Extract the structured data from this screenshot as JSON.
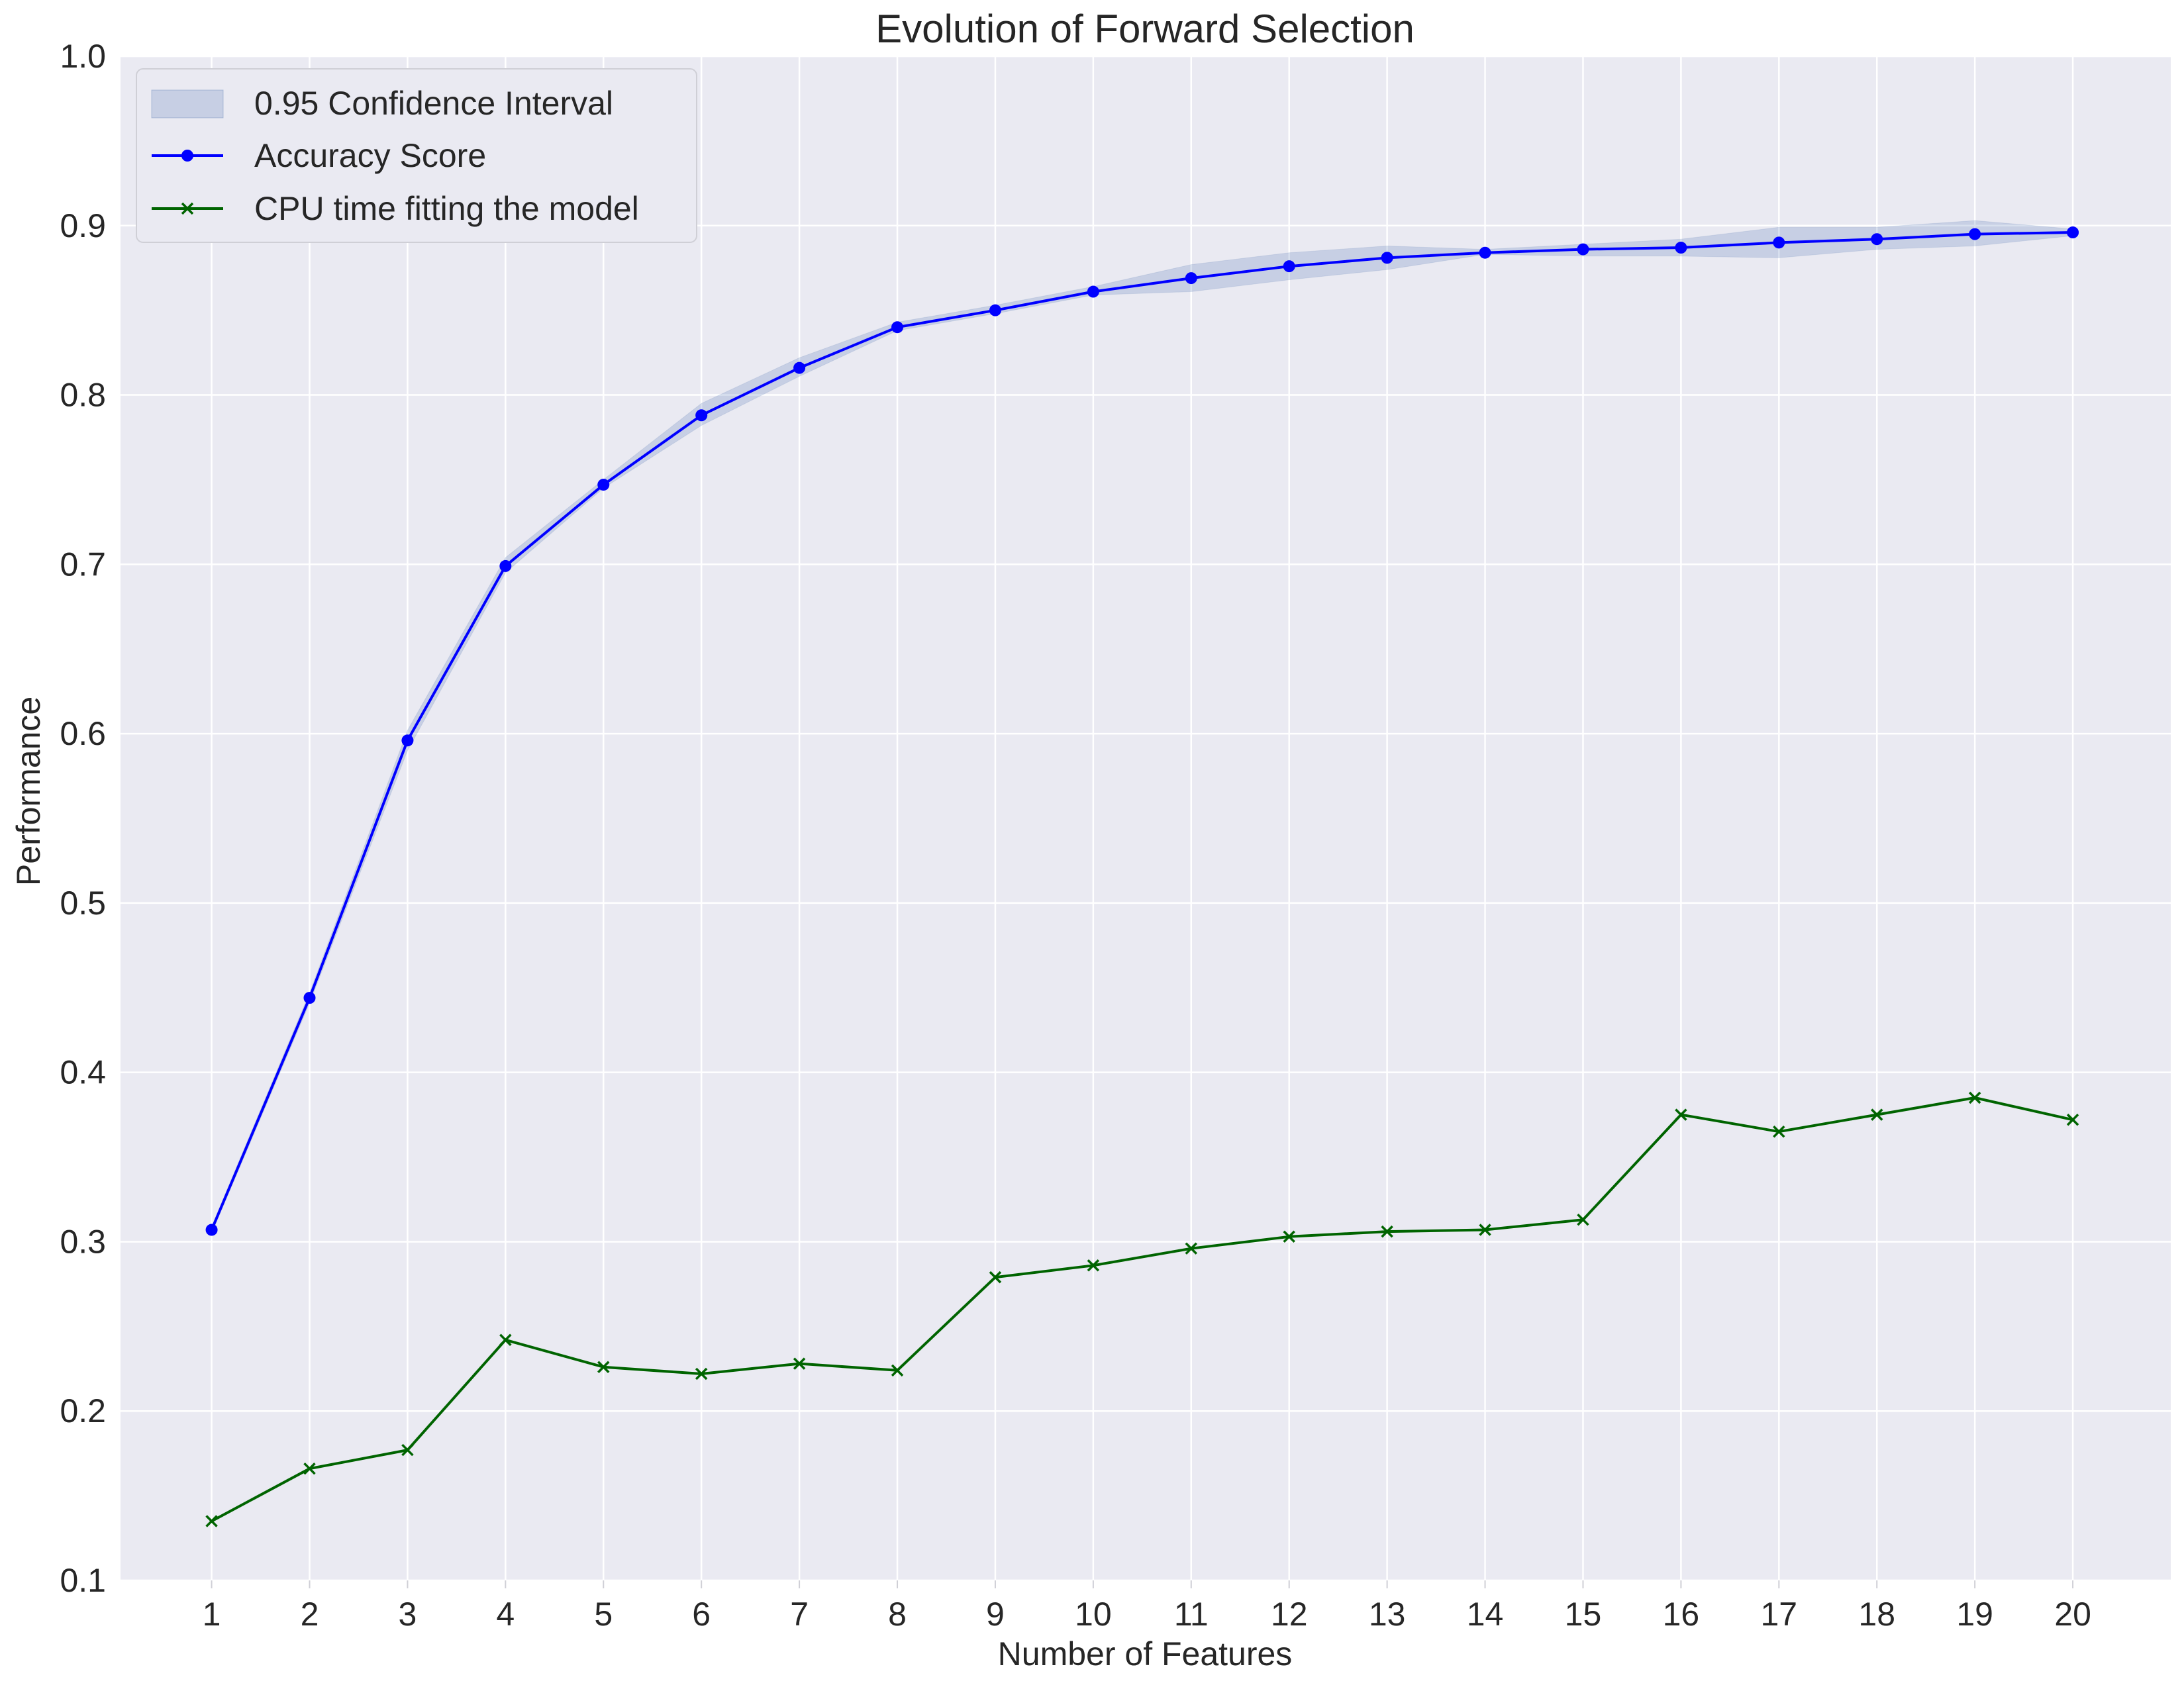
{
  "chart_data": {
    "type": "line",
    "title": "Evolution of Forward Selection",
    "xlabel": "Number of Features",
    "ylabel": "Performance",
    "x": [
      1,
      2,
      3,
      4,
      5,
      6,
      7,
      8,
      9,
      10,
      11,
      12,
      13,
      14,
      15,
      16,
      17,
      18,
      19,
      20
    ],
    "xlim": [
      0.07,
      21.0
    ],
    "ylim": [
      0.1,
      1.0
    ],
    "yticks": [
      "0.1",
      "0.2",
      "0.3",
      "0.4",
      "0.5",
      "0.6",
      "0.7",
      "0.8",
      "0.9",
      "1.0"
    ],
    "grid": true,
    "legend_position": "top-left",
    "background": "#eaeaf2",
    "series": [
      {
        "name": "Accuracy Score",
        "kind": "line-marker-circle",
        "color": "#0000ff",
        "values": [
          0.307,
          0.444,
          0.596,
          0.699,
          0.747,
          0.788,
          0.816,
          0.84,
          0.85,
          0.861,
          0.869,
          0.876,
          0.881,
          0.884,
          0.886,
          0.887,
          0.89,
          0.892,
          0.895,
          0.896
        ]
      },
      {
        "name": "CPU time fitting the model",
        "kind": "line-marker-x",
        "color": "#006400",
        "values": [
          0.135,
          0.166,
          0.177,
          0.242,
          0.226,
          0.222,
          0.228,
          0.224,
          0.279,
          0.286,
          0.296,
          0.303,
          0.306,
          0.307,
          0.313,
          0.375,
          0.365,
          0.375,
          0.385,
          0.372
        ]
      }
    ],
    "band": {
      "name": "0.95 Confidence Interval",
      "color": "#4c72b0",
      "opacity": 0.22,
      "lower": [
        0.305,
        0.441,
        0.59,
        0.695,
        0.745,
        0.782,
        0.811,
        0.838,
        0.848,
        0.859,
        0.861,
        0.868,
        0.874,
        0.883,
        0.882,
        0.882,
        0.881,
        0.886,
        0.888,
        0.894
      ],
      "upper": [
        0.309,
        0.447,
        0.602,
        0.704,
        0.75,
        0.795,
        0.822,
        0.843,
        0.853,
        0.864,
        0.877,
        0.884,
        0.888,
        0.886,
        0.889,
        0.892,
        0.899,
        0.899,
        0.903,
        0.898
      ]
    }
  }
}
